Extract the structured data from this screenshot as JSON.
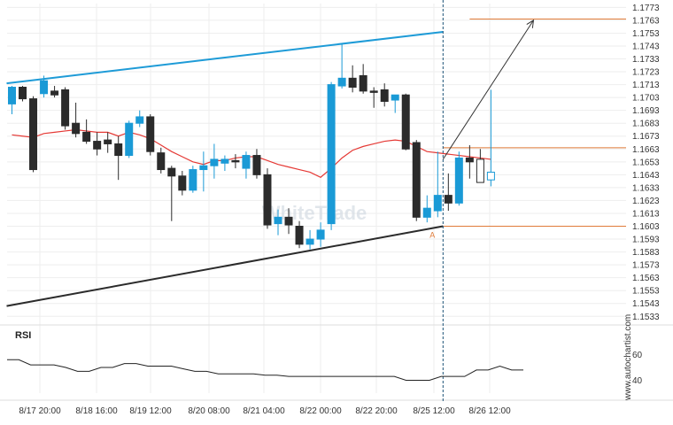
{
  "watermark": "WhiteTrade",
  "source": "www.autochartist.com",
  "colors": {
    "bull": "#1a9ad6",
    "bear": "#2b2b2b",
    "ma": "#e53935",
    "upper_line": "#1e9bd7",
    "lower_line": "#2b2b2b",
    "level": "#e07b39",
    "projection": "#333333",
    "vline": "#1a5276",
    "rsi": "#222222",
    "grid": "#eeeeee"
  },
  "chart_data": [
    {
      "type": "candlestick",
      "x_tick_labels": [
        "8/17 20:00",
        "8/18 16:00",
        "8/19 12:00",
        "8/20 08:00",
        "8/21 04:00",
        "8/22 00:00",
        "8/22 20:00",
        "8/25 12:00",
        "8/26 12:00"
      ],
      "y_tick_labels": [
        "1.1773",
        "1.1763",
        "1.1753",
        "1.1743",
        "1.1733",
        "1.1723",
        "1.1713",
        "1.1703",
        "1.1693",
        "1.1683",
        "1.1673",
        "1.1663",
        "1.1653",
        "1.1643",
        "1.1633",
        "1.1623",
        "1.1613",
        "1.1603",
        "1.1593",
        "1.1583",
        "1.1573",
        "1.1563",
        "1.1553",
        "1.1543",
        "1.1533"
      ],
      "ylim": [
        1.1527,
        1.1776
      ],
      "candles": [
        {
          "o": 1.1698,
          "h": 1.1712,
          "l": 1.169,
          "c": 1.1711
        },
        {
          "o": 1.1711,
          "h": 1.1712,
          "l": 1.17,
          "c": 1.1702
        },
        {
          "o": 1.1702,
          "h": 1.1704,
          "l": 1.1645,
          "c": 1.1647
        },
        {
          "o": 1.1706,
          "h": 1.172,
          "l": 1.1703,
          "c": 1.1716
        },
        {
          "o": 1.1708,
          "h": 1.1712,
          "l": 1.1703,
          "c": 1.1705
        },
        {
          "o": 1.1709,
          "h": 1.1711,
          "l": 1.1678,
          "c": 1.1681
        },
        {
          "o": 1.1683,
          "h": 1.1699,
          "l": 1.1672,
          "c": 1.1675
        },
        {
          "o": 1.1676,
          "h": 1.1686,
          "l": 1.1667,
          "c": 1.1669
        },
        {
          "o": 1.1669,
          "h": 1.1676,
          "l": 1.1658,
          "c": 1.1663
        },
        {
          "o": 1.167,
          "h": 1.1676,
          "l": 1.166,
          "c": 1.1667
        },
        {
          "o": 1.1667,
          "h": 1.1673,
          "l": 1.1639,
          "c": 1.1658
        },
        {
          "o": 1.1658,
          "h": 1.1685,
          "l": 1.1656,
          "c": 1.1683
        },
        {
          "o": 1.1683,
          "h": 1.1693,
          "l": 1.168,
          "c": 1.1688
        },
        {
          "o": 1.1688,
          "h": 1.169,
          "l": 1.1658,
          "c": 1.1661
        },
        {
          "o": 1.166,
          "h": 1.1664,
          "l": 1.1644,
          "c": 1.1647
        },
        {
          "o": 1.1648,
          "h": 1.165,
          "l": 1.1607,
          "c": 1.1642
        },
        {
          "o": 1.1642,
          "h": 1.1646,
          "l": 1.1627,
          "c": 1.1631
        },
        {
          "o": 1.1631,
          "h": 1.165,
          "l": 1.1629,
          "c": 1.1647
        },
        {
          "o": 1.1647,
          "h": 1.1661,
          "l": 1.163,
          "c": 1.165
        },
        {
          "o": 1.165,
          "h": 1.1667,
          "l": 1.164,
          "c": 1.1655
        },
        {
          "o": 1.1652,
          "h": 1.1658,
          "l": 1.1646,
          "c": 1.1655
        },
        {
          "o": 1.1654,
          "h": 1.1659,
          "l": 1.1648,
          "c": 1.1653
        },
        {
          "o": 1.1648,
          "h": 1.1661,
          "l": 1.164,
          "c": 1.1658
        },
        {
          "o": 1.1658,
          "h": 1.1663,
          "l": 1.164,
          "c": 1.1643
        },
        {
          "o": 1.1643,
          "h": 1.1648,
          "l": 1.1601,
          "c": 1.1604
        },
        {
          "o": 1.1605,
          "h": 1.1616,
          "l": 1.1596,
          "c": 1.161
        },
        {
          "o": 1.161,
          "h": 1.1617,
          "l": 1.1597,
          "c": 1.1604
        },
        {
          "o": 1.1603,
          "h": 1.1607,
          "l": 1.1586,
          "c": 1.1589
        },
        {
          "o": 1.1589,
          "h": 1.16,
          "l": 1.1585,
          "c": 1.1593
        },
        {
          "o": 1.1593,
          "h": 1.1606,
          "l": 1.1587,
          "c": 1.16
        },
        {
          "o": 1.1605,
          "h": 1.1715,
          "l": 1.16,
          "c": 1.1713
        },
        {
          "o": 1.1712,
          "h": 1.1745,
          "l": 1.171,
          "c": 1.1718
        },
        {
          "o": 1.1718,
          "h": 1.1728,
          "l": 1.1707,
          "c": 1.1711
        },
        {
          "o": 1.172,
          "h": 1.1729,
          "l": 1.1706,
          "c": 1.1708
        },
        {
          "o": 1.1708,
          "h": 1.1711,
          "l": 1.1695,
          "c": 1.1707
        },
        {
          "o": 1.1709,
          "h": 1.1714,
          "l": 1.1696,
          "c": 1.17
        },
        {
          "o": 1.1701,
          "h": 1.1705,
          "l": 1.1691,
          "c": 1.1705
        },
        {
          "o": 1.1705,
          "h": 1.1706,
          "l": 1.1662,
          "c": 1.1663
        },
        {
          "o": 1.1668,
          "h": 1.167,
          "l": 1.1607,
          "c": 1.161
        },
        {
          "o": 1.161,
          "h": 1.1627,
          "l": 1.1606,
          "c": 1.1617
        },
        {
          "o": 1.1615,
          "h": 1.1661,
          "l": 1.161,
          "c": 1.1627
        },
        {
          "o": 1.1627,
          "h": 1.1644,
          "l": 1.1615,
          "c": 1.1621
        },
        {
          "o": 1.1621,
          "h": 1.1661,
          "l": 1.1619,
          "c": 1.1656
        },
        {
          "o": 1.1656,
          "h": 1.1666,
          "l": 1.164,
          "c": 1.1653
        },
        {
          "o": 1.1655,
          "h": 1.1663,
          "l": 1.1637,
          "c": 1.1637
        },
        {
          "o": 1.1639,
          "h": 1.1709,
          "l": 1.1634,
          "c": 1.1645
        }
      ],
      "moving_average": [
        1.1674,
        1.1673,
        1.1672,
        1.1675,
        1.1676,
        1.1677,
        1.1678,
        1.1677,
        1.1676,
        1.1676,
        1.1673,
        1.1676,
        1.1674,
        1.1671,
        1.1666,
        1.1661,
        1.1657,
        1.1653,
        1.1651,
        1.1654,
        1.1654,
        1.1656,
        1.1657,
        1.1657,
        1.1654,
        1.1651,
        1.1649,
        1.1647,
        1.1645,
        1.1641,
        1.1648,
        1.1656,
        1.1662,
        1.1665,
        1.1667,
        1.1669,
        1.167,
        1.1669,
        1.1665,
        1.1661,
        1.166,
        1.1659,
        1.1658,
        1.1657,
        1.1656,
        1.1655
      ],
      "trendlines": [
        {
          "name": "upper",
          "from": {
            "i": -0.5,
            "y": 1.1714
          },
          "to": {
            "i": 40.5,
            "y": 1.1754
          }
        },
        {
          "name": "lower",
          "from": {
            "i": -0.5,
            "y": 1.1541
          },
          "to": {
            "i": 40.5,
            "y": 1.1603
          }
        }
      ],
      "levels": [
        {
          "y": 1.1764,
          "from_i": 43.0
        },
        {
          "y": 1.1664,
          "from_i": 40.5
        },
        {
          "y": 1.1603,
          "from_i": 40.5
        }
      ],
      "projection_arrow": {
        "from": {
          "i": 40.5,
          "y": 1.1655
        },
        "to": {
          "i": 49.0,
          "y": 1.1763
        }
      },
      "vertical_marker_i": 40.5,
      "point_label": "A",
      "point_label_i": 39.5,
      "point_label_y": 1.1596
    },
    {
      "type": "line",
      "title": "RSI",
      "y_tick_labels": [
        "60",
        "40"
      ],
      "ylim": [
        30,
        70
      ],
      "values": [
        56,
        56,
        52,
        52,
        52,
        50,
        47,
        47,
        50,
        50,
        53,
        53,
        51,
        51,
        51,
        49,
        47,
        47,
        45,
        45,
        45,
        45,
        44,
        44,
        43,
        43,
        43,
        43,
        43,
        43,
        43,
        43,
        43,
        43,
        40,
        40,
        40,
        43,
        43,
        43,
        48,
        48,
        51,
        48,
        48
      ]
    }
  ]
}
